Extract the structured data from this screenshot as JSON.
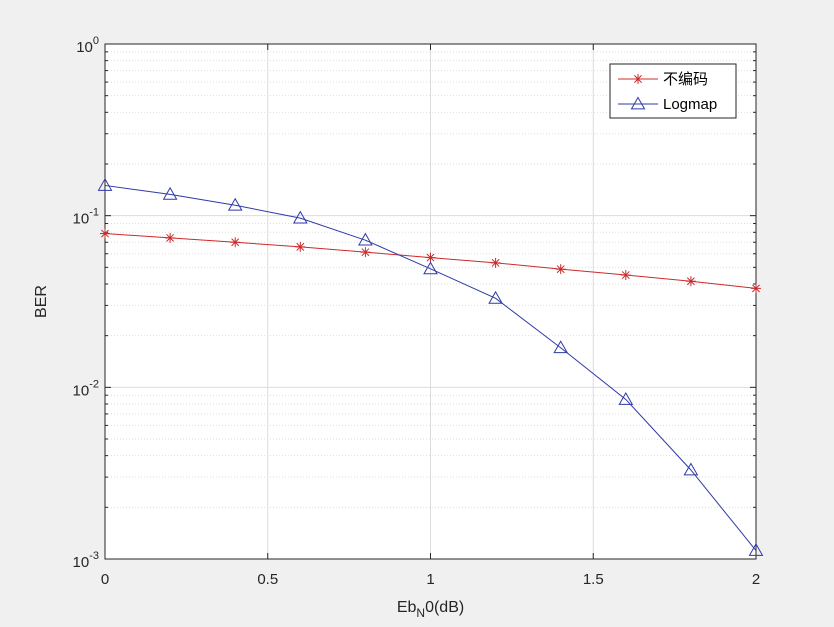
{
  "chart_data": {
    "type": "line",
    "xlabel_main": "Eb",
    "xlabel_sub": "N",
    "xlabel_rest": "0(dB)",
    "ylabel": "BER",
    "xlim": [
      0,
      2
    ],
    "ylim": [
      0.001,
      1
    ],
    "yscale": "log",
    "grid": true,
    "legend_position": "top-right",
    "x_ticks": [
      {
        "value": 0,
        "label": "0"
      },
      {
        "value": 0.5,
        "label": "0.5"
      },
      {
        "value": 1,
        "label": "1"
      },
      {
        "value": 1.5,
        "label": "1.5"
      },
      {
        "value": 2,
        "label": "2"
      }
    ],
    "y_ticks": [
      {
        "value": 1,
        "base": "10",
        "exp": "0"
      },
      {
        "value": 0.1,
        "base": "10",
        "exp": "-1"
      },
      {
        "value": 0.01,
        "base": "10",
        "exp": "-2"
      },
      {
        "value": 0.001,
        "base": "10",
        "exp": "-3"
      }
    ],
    "x": [
      0,
      0.2,
      0.4,
      0.6,
      0.8,
      1.0,
      1.2,
      1.4,
      1.6,
      1.8,
      2.0
    ],
    "series": [
      {
        "name": "不编码",
        "color": "#cc2a2a",
        "marker": "asterisk",
        "values": [
          0.0787,
          0.0742,
          0.07,
          0.0658,
          0.0613,
          0.057,
          0.0531,
          0.0488,
          0.0451,
          0.0415,
          0.0377
        ]
      },
      {
        "name": "Logmap",
        "color": "#2f3aa6",
        "marker": "triangle",
        "values": [
          0.15,
          0.133,
          0.115,
          0.0968,
          0.072,
          0.049,
          0.033,
          0.017,
          0.0085,
          0.0033,
          0.00112
        ]
      }
    ]
  }
}
